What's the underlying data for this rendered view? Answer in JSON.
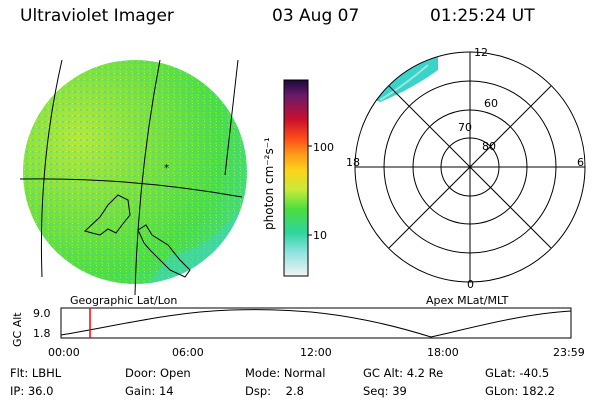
{
  "header": {
    "instrument": "Ultraviolet Imager",
    "date": "03 Aug 07",
    "time": "01:25:24 UT"
  },
  "colorbar": {
    "label": "photon cm⁻²s⁻¹",
    "ticks": [
      "100",
      "10"
    ]
  },
  "panels": {
    "left_label": "Geographic Lat/Lon",
    "right_label": "Apex  MLat/MLT"
  },
  "polar": {
    "lat_labels": [
      "80",
      "70",
      "60"
    ],
    "mlt_labels": [
      "12",
      "18",
      "6",
      "0"
    ]
  },
  "timeline": {
    "ylabel": "GC Alt",
    "ticks": [
      "9.0",
      "1.8"
    ],
    "xticks": [
      "00:00",
      "06:00",
      "12:00",
      "18:00",
      "23:59"
    ]
  },
  "status": {
    "row1": [
      {
        "k": "Flt:",
        "v": "LBHL"
      },
      {
        "k": "Door:",
        "v": "Open"
      },
      {
        "k": "Mode:",
        "v": "Normal"
      },
      {
        "k": "GC Alt:",
        "v": "4.2 Re"
      },
      {
        "k": "GLat:",
        "v": "-40.5"
      }
    ],
    "row2": [
      {
        "k": "IP:",
        "v": "36.0"
      },
      {
        "k": "Gain:",
        "v": "14"
      },
      {
        "k": "Dsp:",
        "v": "2.8"
      },
      {
        "k": "Seq:",
        "v": "39"
      },
      {
        "k": "GLon:",
        "v": "182.2"
      }
    ]
  },
  "colors": {
    "disk_base": "#4ade3e",
    "disk_bright": "#b8e83a",
    "disk_edge": "#39d3c9",
    "marker": "#ff0000"
  }
}
